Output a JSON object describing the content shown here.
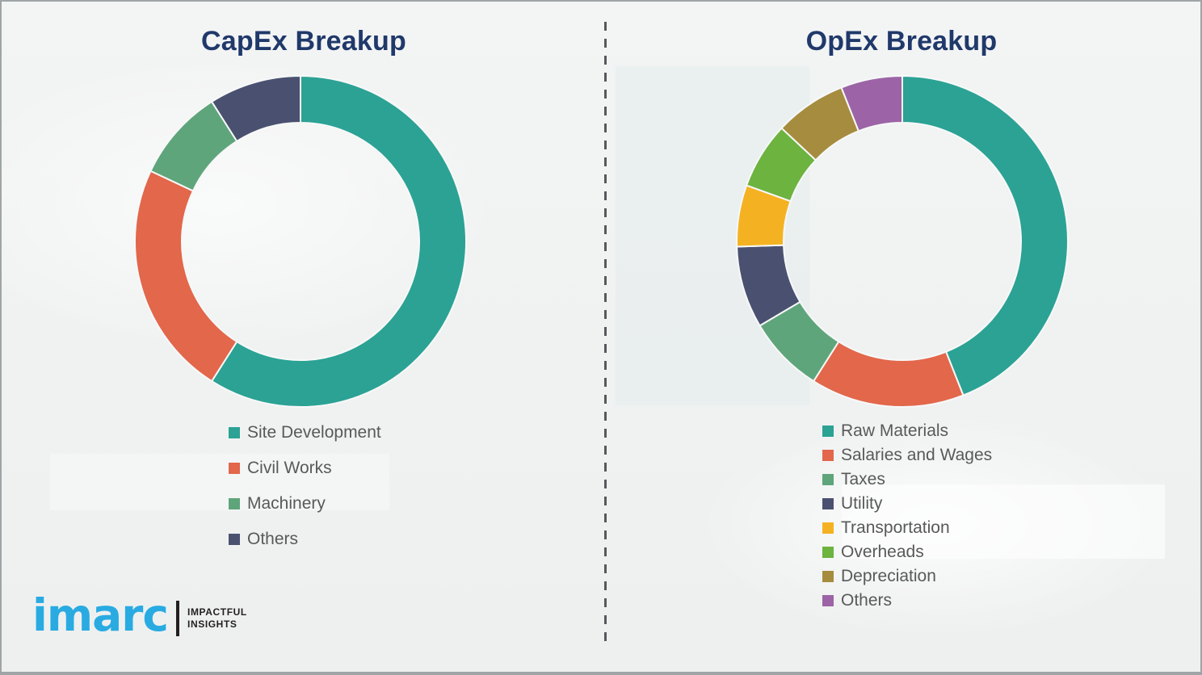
{
  "chart_data": [
    {
      "type": "pie",
      "subtype": "donut",
      "title": "CapEx Breakup",
      "labels": [
        "Site Development",
        "Civil Works",
        "Machinery",
        "Others"
      ],
      "values": [
        59,
        23,
        9,
        9
      ],
      "colors": [
        "#2ba294",
        "#e2674b",
        "#5fa57b",
        "#4a5170"
      ],
      "start_angle_deg": 0,
      "direction": "clockwise",
      "legend_position": "below-left",
      "data_labels": "none"
    },
    {
      "type": "pie",
      "subtype": "donut",
      "title": "OpEx Breakup",
      "labels": [
        "Raw Materials",
        "Salaries and Wages",
        "Taxes",
        "Utility",
        "Transportation",
        "Overheads",
        "Depreciation",
        "Others"
      ],
      "values": [
        44,
        15,
        7.5,
        8,
        6,
        6.5,
        7,
        6
      ],
      "colors": [
        "#2ba294",
        "#e2674b",
        "#5fa57b",
        "#4a5170",
        "#f4b223",
        "#6cb33f",
        "#a68c3e",
        "#9c64a6"
      ],
      "start_angle_deg": 0,
      "direction": "clockwise",
      "legend_position": "below-left",
      "data_labels": "none"
    }
  ],
  "divider": {
    "style": "dashed-vertical",
    "color": "#57585a"
  },
  "title_color": "#20396b",
  "legend_text_color": "#595959",
  "logo": {
    "wordmark": "imarc",
    "tagline_line1": "IMPACTFUL",
    "tagline_line2": "INSIGHTS",
    "wordmark_color": "#29abe2",
    "tagline_color": "#231f20"
  }
}
